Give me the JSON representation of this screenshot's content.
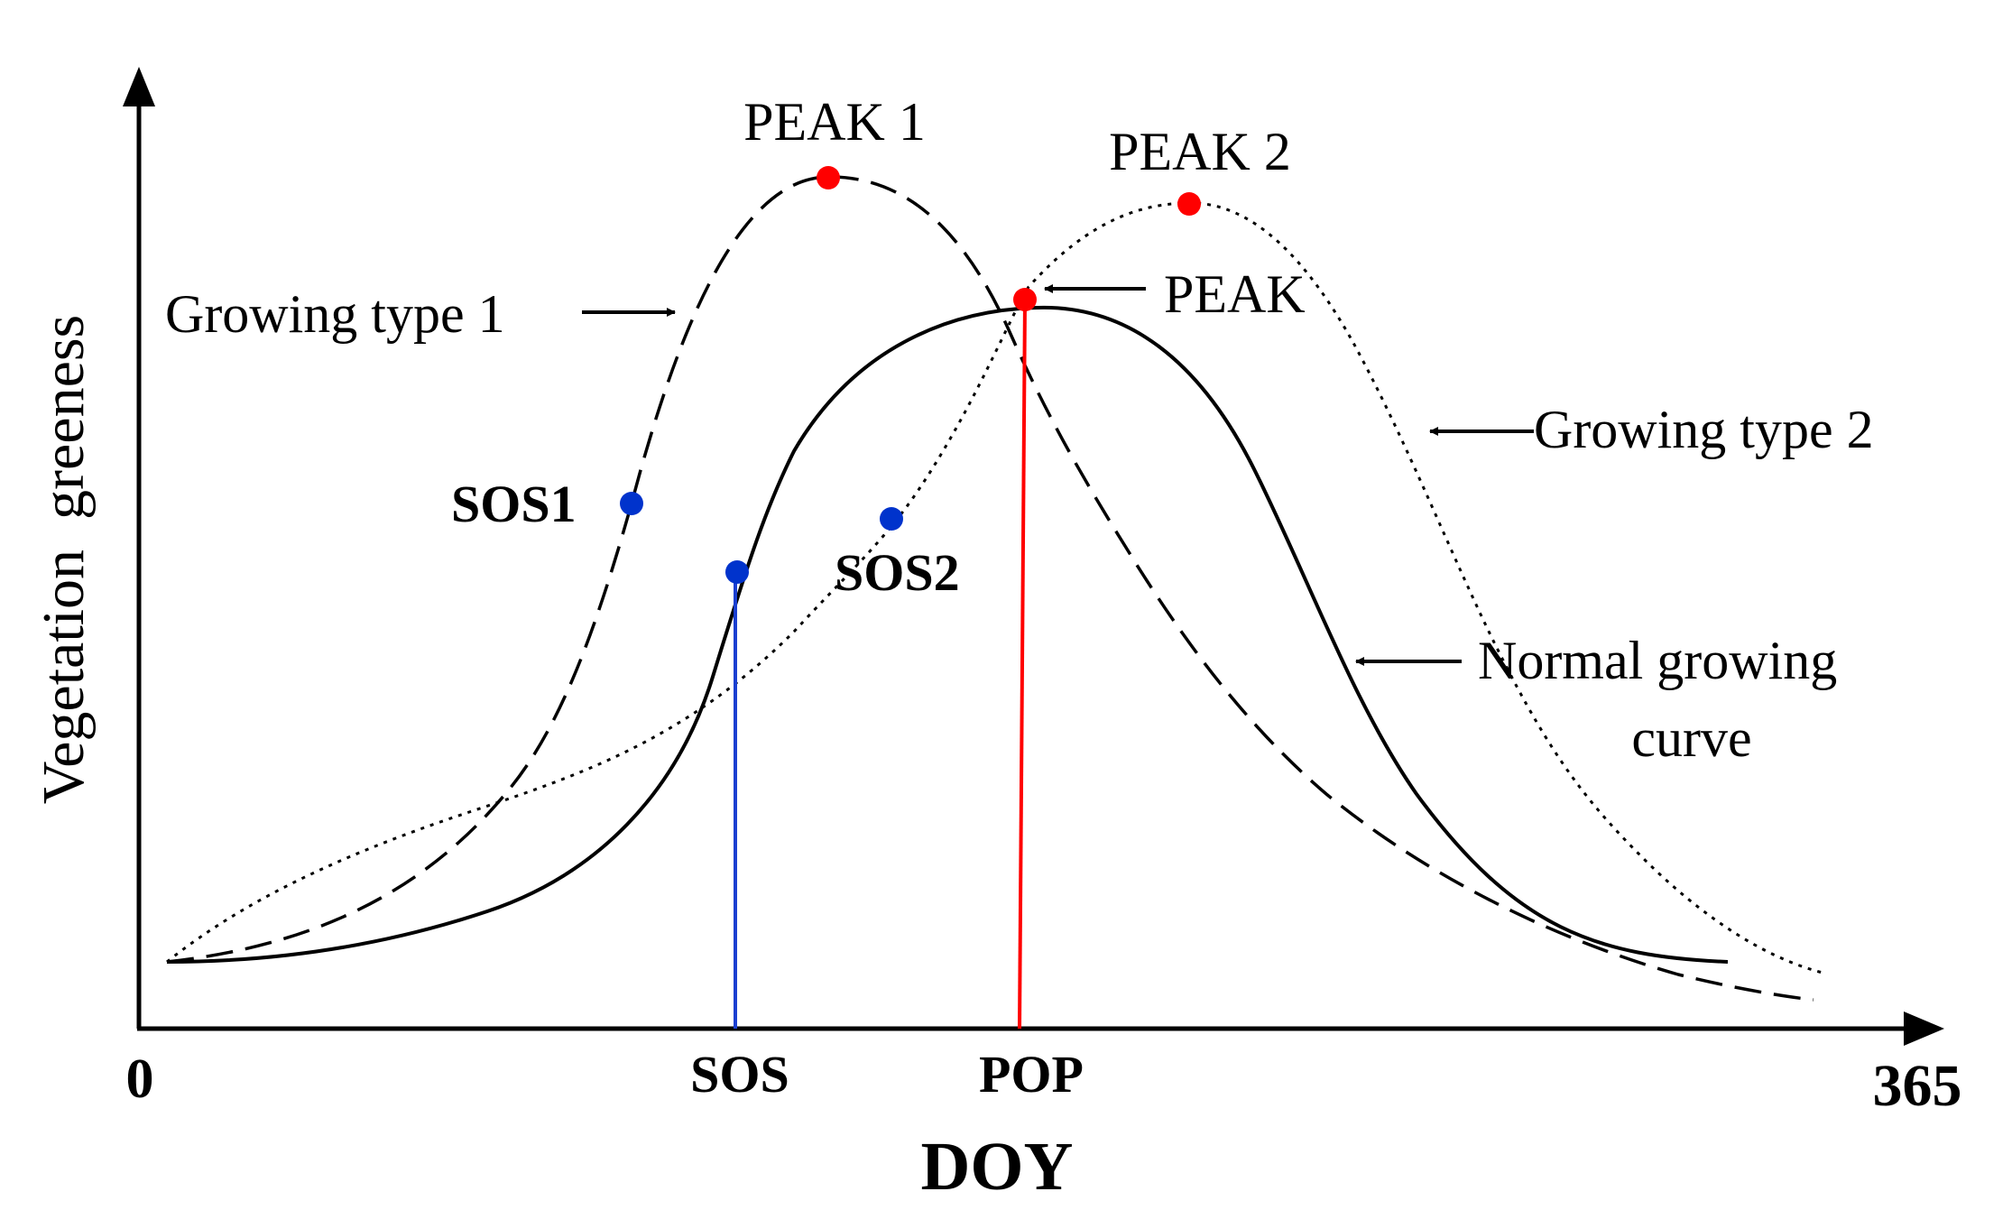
{
  "axes": {
    "y_label": "Vegetation  greeness",
    "x_label": "DOY",
    "x_start": "0",
    "x_end": "365",
    "x_ticks": [
      "SOS",
      "POP"
    ]
  },
  "curves": {
    "normal": {
      "label": "Normal growing curve",
      "label_line1": "Normal growing",
      "label_line2": "curve",
      "style": "solid"
    },
    "type1": {
      "label": "Growing type 1",
      "style": "dashed"
    },
    "type2": {
      "label": "Growing type 2",
      "style": "dotted"
    }
  },
  "points": {
    "peak": "PEAK",
    "peak1": "PEAK 1",
    "peak2": "PEAK 2",
    "sos1": "SOS1",
    "sos2": "SOS2"
  },
  "colors": {
    "peak_marker": "#ff0000",
    "sos_marker": "#0033cc",
    "sos_line": "#1a3fd1",
    "pop_line": "#ff0000",
    "curve": "#000000"
  }
}
